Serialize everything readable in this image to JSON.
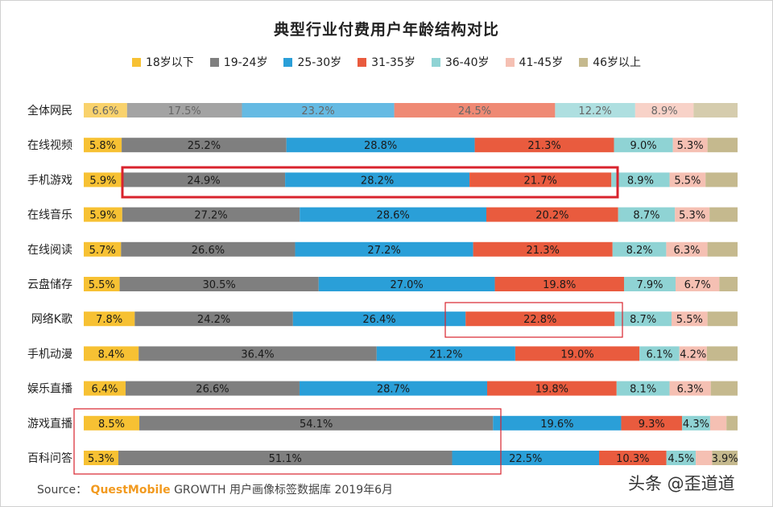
{
  "chart_data": {
    "type": "bar",
    "orientation": "horizontal",
    "stacked": "percent",
    "title": "典型行业付费用户年龄结构对比",
    "legend_position": "top",
    "grid": false,
    "categories": [
      "全体网民",
      "在线视频",
      "手机游戏",
      "在线音乐",
      "在线阅读",
      "云盘储存",
      "网络K歌",
      "手机动漫",
      "娱乐直播",
      "游戏直播",
      "百科问答"
    ],
    "series": [
      {
        "name": "18岁以下",
        "color": "#f7c133",
        "values": [
          6.6,
          5.8,
          5.9,
          5.9,
          5.7,
          5.5,
          7.8,
          8.4,
          6.4,
          8.5,
          5.3
        ],
        "labels": [
          "6.6%",
          "5.8%",
          "5.9%",
          "5.9%",
          "5.7%",
          "5.5%",
          "7.8%",
          "8.4%",
          "6.4%",
          "8.5%",
          "5.3%"
        ]
      },
      {
        "name": "19-24岁",
        "color": "#7f7f7f",
        "values": [
          17.5,
          25.2,
          24.9,
          27.2,
          26.6,
          30.5,
          24.2,
          36.4,
          26.6,
          54.1,
          51.1
        ],
        "labels": [
          "17.5%",
          "25.2%",
          "24.9%",
          "27.2%",
          "26.6%",
          "30.5%",
          "24.2%",
          "36.4%",
          "26.6%",
          "54.1%",
          "51.1%"
        ]
      },
      {
        "name": "25-30岁",
        "color": "#2a9fd8",
        "values": [
          23.2,
          28.8,
          28.2,
          28.6,
          27.2,
          27.0,
          26.4,
          21.2,
          28.7,
          19.6,
          22.5
        ],
        "labels": [
          "23.2%",
          "28.8%",
          "28.2%",
          "28.6%",
          "27.2%",
          "27.0%",
          "26.4%",
          "21.2%",
          "28.7%",
          "19.6%",
          "22.5%"
        ]
      },
      {
        "name": "31-35岁",
        "color": "#e95b3e",
        "values": [
          24.5,
          21.3,
          21.7,
          20.2,
          21.3,
          19.8,
          22.8,
          19.0,
          19.8,
          9.3,
          10.3
        ],
        "labels": [
          "24.5%",
          "21.3%",
          "21.7%",
          "20.2%",
          "21.3%",
          "19.8%",
          "22.8%",
          "19.0%",
          "19.8%",
          "9.3%",
          "10.3%"
        ]
      },
      {
        "name": "36-40岁",
        "color": "#8fd3d4",
        "values": [
          12.2,
          9.0,
          8.9,
          8.7,
          8.2,
          7.9,
          8.7,
          6.1,
          8.1,
          4.3,
          4.5
        ],
        "labels": [
          "12.2%",
          "9.0%",
          "8.9%",
          "8.7%",
          "8.2%",
          "7.9%",
          "8.7%",
          "6.1%",
          "8.1%",
          "4.3%",
          "4.5%"
        ]
      },
      {
        "name": "41-45岁",
        "color": "#f5c0b3",
        "values": [
          8.9,
          5.3,
          5.5,
          5.3,
          6.3,
          6.7,
          5.5,
          4.2,
          6.3,
          2.5,
          2.5
        ],
        "labels": [
          "8.9%",
          "5.3%",
          "5.5%",
          "5.3%",
          "6.3%",
          "6.7%",
          "5.5%",
          "4.2%",
          "6.3%",
          "",
          ""
        ]
      },
      {
        "name": "46岁以上",
        "color": "#c5b98e",
        "values": [
          6.7,
          4.6,
          4.9,
          4.3,
          4.6,
          2.8,
          4.6,
          4.7,
          4.1,
          1.7,
          3.9
        ],
        "labels": [
          "",
          "",
          "",
          "",
          "",
          "",
          "",
          "",
          "",
          "",
          "3.9%"
        ]
      }
    ]
  },
  "source": {
    "prefix": "Source：",
    "brand": "QuestMobile",
    "text": "GROWTH 用户画像标签数据库 2019年6月"
  },
  "watermark_text": "头条 @歪道道"
}
